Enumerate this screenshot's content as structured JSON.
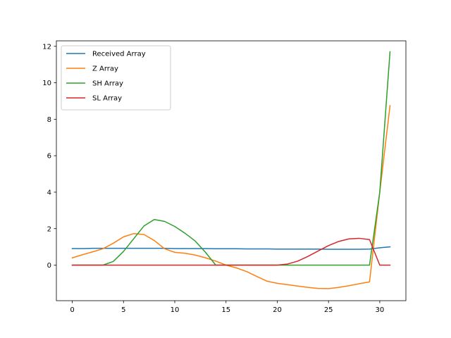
{
  "chart_data": {
    "type": "line",
    "title": "",
    "xlabel": "",
    "ylabel": "",
    "xlim": [
      -1.55,
      32.55
    ],
    "ylim": [
      -1.95,
      12.3
    ],
    "x_ticks": [
      0,
      5,
      10,
      15,
      20,
      25,
      30
    ],
    "y_ticks": [
      0,
      2,
      4,
      6,
      8,
      10,
      12
    ],
    "grid": false,
    "legend_position": "upper-left",
    "x": [
      0,
      1,
      2,
      3,
      4,
      5,
      6,
      7,
      8,
      9,
      10,
      11,
      12,
      13,
      14,
      15,
      16,
      17,
      18,
      19,
      20,
      21,
      22,
      23,
      24,
      25,
      26,
      27,
      28,
      29,
      30,
      31
    ],
    "series": [
      {
        "name": "Received Array",
        "color": "#1f77b4",
        "values": [
          0.91,
          0.91,
          0.92,
          0.92,
          0.92,
          0.92,
          0.92,
          0.92,
          0.92,
          0.92,
          0.91,
          0.91,
          0.91,
          0.91,
          0.9,
          0.9,
          0.9,
          0.89,
          0.89,
          0.89,
          0.88,
          0.88,
          0.88,
          0.88,
          0.88,
          0.87,
          0.87,
          0.87,
          0.87,
          0.88,
          0.95,
          1.0
        ]
      },
      {
        "name": "Z Array",
        "color": "#ff7f0e",
        "values": [
          0.4,
          0.57,
          0.73,
          0.9,
          1.2,
          1.55,
          1.73,
          1.68,
          1.35,
          0.9,
          0.7,
          0.65,
          0.55,
          0.4,
          0.22,
          0.0,
          -0.15,
          -0.35,
          -0.62,
          -0.88,
          -1.0,
          -1.07,
          -1.15,
          -1.22,
          -1.28,
          -1.29,
          -1.22,
          -1.13,
          -1.02,
          -0.92,
          4.0,
          8.75
        ]
      },
      {
        "name": "SH Array",
        "color": "#2ca02c",
        "values": [
          0.0,
          0.0,
          0.0,
          0.0,
          0.2,
          0.75,
          1.45,
          2.15,
          2.5,
          2.4,
          2.12,
          1.75,
          1.32,
          0.7,
          0.0,
          0.0,
          0.0,
          0.0,
          0.0,
          0.0,
          0.0,
          0.0,
          0.0,
          0.0,
          0.0,
          0.0,
          0.0,
          0.0,
          0.0,
          0.0,
          4.0,
          11.7
        ]
      },
      {
        "name": "SL Array",
        "color": "#d62728",
        "values": [
          0.0,
          0.0,
          0.0,
          0.0,
          0.0,
          0.0,
          0.0,
          0.0,
          0.0,
          0.0,
          0.0,
          0.0,
          0.0,
          0.0,
          0.0,
          0.0,
          0.0,
          0.0,
          0.0,
          0.0,
          0.0,
          0.06,
          0.22,
          0.48,
          0.78,
          1.07,
          1.3,
          1.44,
          1.47,
          1.4,
          0.0,
          0.0
        ]
      }
    ]
  }
}
